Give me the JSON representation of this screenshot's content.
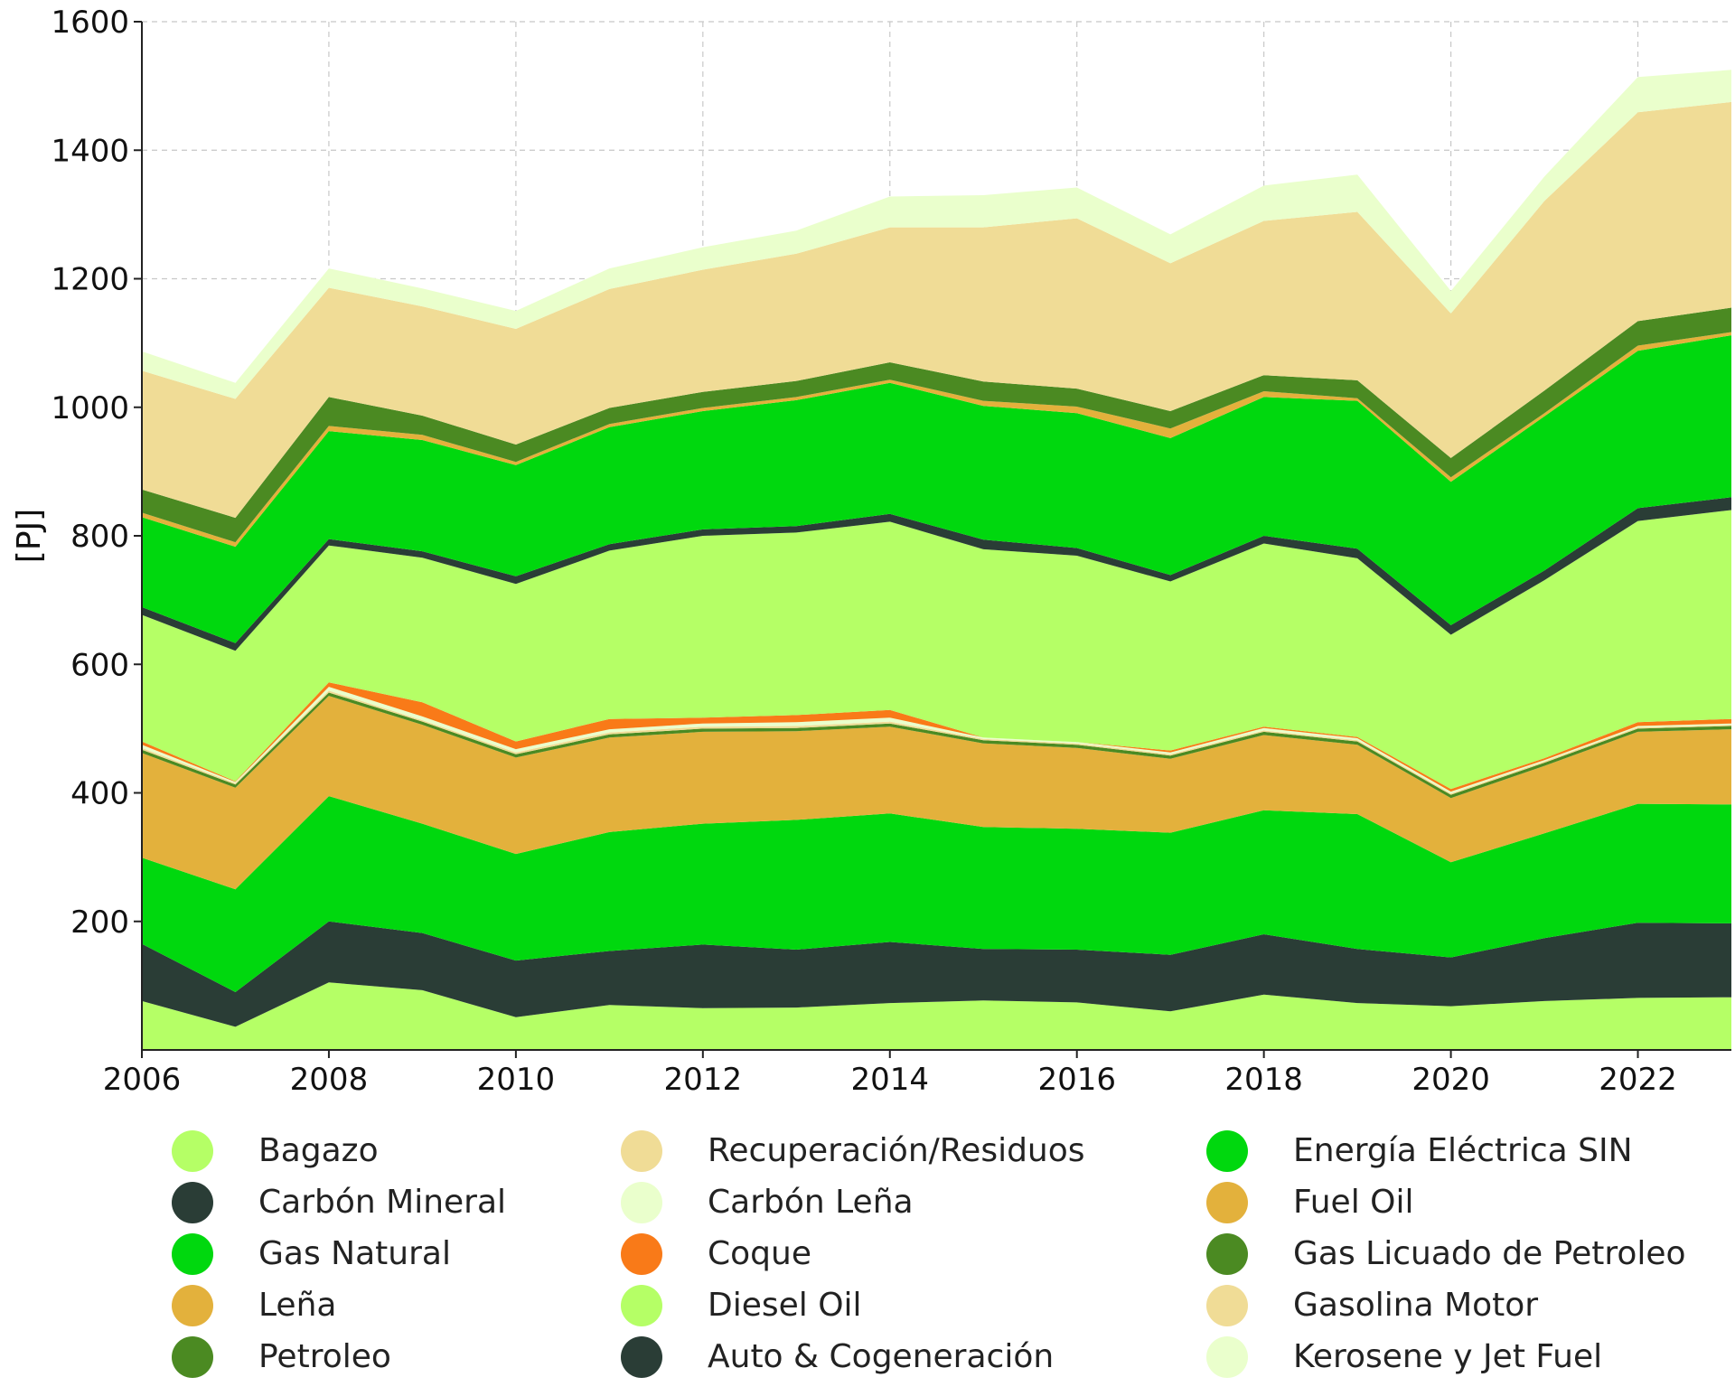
{
  "chart_data": {
    "type": "area",
    "stacked": true,
    "title": "",
    "xlabel": "",
    "ylabel": "[PJ]",
    "xlim": [
      2006,
      2023
    ],
    "ylim": [
      0,
      1600
    ],
    "x_ticks": [
      2006,
      2008,
      2010,
      2012,
      2014,
      2016,
      2018,
      2020,
      2022
    ],
    "y_ticks": [
      200,
      400,
      600,
      800,
      1000,
      1200,
      1400,
      1600
    ],
    "grid": true,
    "legend_position": "bottom",
    "x": [
      2006,
      2007,
      2008,
      2009,
      2010,
      2011,
      2012,
      2013,
      2014,
      2015,
      2016,
      2017,
      2018,
      2019,
      2020,
      2021,
      2022,
      2023
    ],
    "series": [
      {
        "name": "Bagazo",
        "color": "#b5ff66",
        "values": [
          76,
          36,
          105,
          93,
          51,
          70,
          65,
          66,
          73,
          77,
          74,
          60,
          86,
          73,
          68,
          76,
          81,
          82
        ]
      },
      {
        "name": "Carbón Mineral",
        "color": "#2a3d36",
        "values": [
          89,
          54,
          95,
          89,
          88,
          84,
          99,
          90,
          95,
          80,
          82,
          88,
          94,
          84,
          76,
          98,
          117,
          115
        ]
      },
      {
        "name": "Gas Natural",
        "color": "#00d80e",
        "values": [
          134,
          160,
          195,
          170,
          166,
          185,
          188,
          202,
          200,
          190,
          188,
          190,
          193,
          210,
          148,
          163,
          185,
          185
        ]
      },
      {
        "name": "Leña",
        "color": "#e3b13c",
        "values": [
          163,
          158,
          156,
          154,
          150,
          147,
          143,
          138,
          135,
          130,
          126,
          115,
          117,
          108,
          100,
          105,
          112,
          117
        ]
      },
      {
        "name": "Petroleo",
        "color": "#4b8a22",
        "values": [
          5,
          5,
          5,
          5,
          5,
          5,
          5,
          5,
          5,
          5,
          5,
          5,
          5,
          5,
          5,
          5,
          5,
          5
        ]
      },
      {
        "name": "Recuperación/Residuos",
        "color": "#f0dc96",
        "values": [
          3,
          2,
          3,
          2,
          3,
          3,
          3,
          3,
          3,
          2,
          2,
          2,
          2,
          2,
          2,
          2,
          2,
          2
        ]
      },
      {
        "name": "Carbón Leña",
        "color": "#eaffcc",
        "values": [
          5,
          2,
          6,
          6,
          5,
          5,
          5,
          6,
          6,
          2,
          2,
          3,
          4,
          3,
          3,
          2,
          2,
          2
        ]
      },
      {
        "name": "Coque",
        "color": "#f97a18",
        "values": [
          5,
          1,
          7,
          22,
          12,
          16,
          9,
          11,
          12,
          0,
          0,
          3,
          2,
          2,
          4,
          3,
          6,
          7
        ]
      },
      {
        "name": "Diesel Oil",
        "color": "#b5ff66",
        "values": [
          197,
          203,
          213,
          225,
          245,
          262,
          283,
          284,
          293,
          293,
          290,
          263,
          285,
          278,
          240,
          277,
          313,
          325
        ]
      },
      {
        "name": "Auto & Cogeneración",
        "color": "#2a3d36",
        "values": [
          12,
          12,
          10,
          10,
          12,
          10,
          10,
          10,
          12,
          15,
          12,
          10,
          12,
          15,
          15,
          15,
          20,
          20
        ]
      },
      {
        "name": "Energía Eléctrica SIN",
        "color": "#00d80e",
        "values": [
          140,
          150,
          168,
          173,
          173,
          182,
          184,
          196,
          204,
          208,
          210,
          213,
          216,
          230,
          223,
          240,
          245,
          252
        ]
      },
      {
        "name": "Fuel Oil",
        "color": "#e3b13c",
        "values": [
          7,
          7,
          8,
          8,
          5,
          5,
          5,
          5,
          5,
          8,
          10,
          15,
          9,
          4,
          7,
          5,
          8,
          5
        ]
      },
      {
        "name": "Gas Licuado de Petroleo",
        "color": "#4b8a22",
        "values": [
          36,
          38,
          45,
          30,
          27,
          25,
          25,
          25,
          27,
          30,
          28,
          27,
          25,
          28,
          30,
          35,
          38,
          38
        ]
      },
      {
        "name": "Gasolina Motor",
        "color": "#f0dc96",
        "values": [
          185,
          185,
          170,
          170,
          180,
          185,
          190,
          198,
          210,
          240,
          265,
          230,
          240,
          262,
          225,
          295,
          325,
          320
        ]
      },
      {
        "name": "Kerosene y Jet Fuel",
        "color": "#eaffcc",
        "values": [
          30,
          25,
          30,
          28,
          28,
          32,
          35,
          36,
          48,
          50,
          48,
          45,
          55,
          58,
          35,
          38,
          55,
          50
        ]
      }
    ]
  }
}
